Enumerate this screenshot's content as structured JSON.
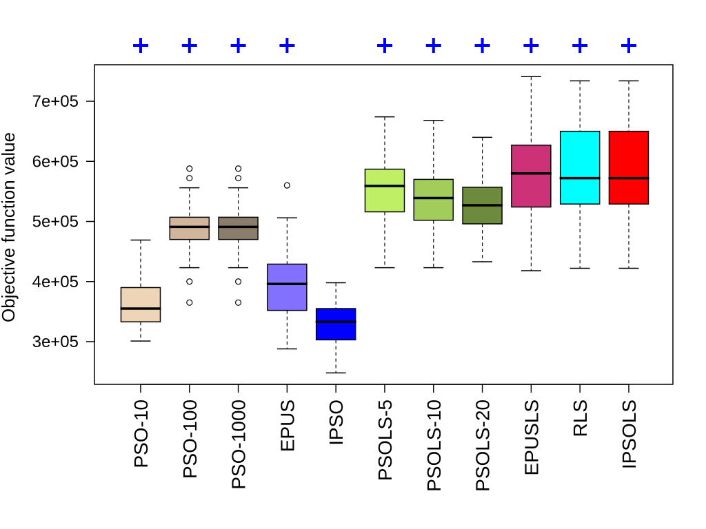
{
  "chart_data": {
    "type": "boxplot",
    "title": "",
    "xlabel": "",
    "ylabel": "Objective function value",
    "ylim": [
      230000,
      760000
    ],
    "yticks": [
      300000,
      400000,
      500000,
      600000,
      700000
    ],
    "ytick_labels": [
      "3e+05",
      "4e+05",
      "5e+05",
      "6e+05",
      "7e+05"
    ],
    "grid": false,
    "significance_marker": "+",
    "significance_color": "#0000FF",
    "categories": [
      "PSO-10",
      "PSO-100",
      "PSO-1000",
      "EPUS",
      "IPSO",
      "PSOLS-5",
      "PSOLS-10",
      "PSOLS-20",
      "EPUSLS",
      "RLS",
      "IPSOLS"
    ],
    "bold_categories": [
      "IPSO",
      "IPSOLS"
    ],
    "boxes": [
      {
        "name": "PSO-10",
        "color": "#EED5B7",
        "whisker_low": 301000,
        "q1": 333000,
        "median": 355000,
        "q3": 390000,
        "whisker_high": 469000,
        "outliers": [],
        "significant": true
      },
      {
        "name": "PSO-100",
        "color": "#D2B69C",
        "whisker_low": 423000,
        "q1": 470000,
        "median": 491000,
        "q3": 507000,
        "whisker_high": 556000,
        "outliers": [
          588000,
          572000,
          400000,
          365000
        ],
        "significant": true
      },
      {
        "name": "PSO-1000",
        "color": "#8B7D6B",
        "whisker_low": 423000,
        "q1": 470000,
        "median": 491000,
        "q3": 507000,
        "whisker_high": 556000,
        "outliers": [
          588000,
          572000,
          400000,
          365000
        ],
        "significant": true
      },
      {
        "name": "EPUS",
        "color": "#8470FF",
        "whisker_low": 288000,
        "q1": 352000,
        "median": 396000,
        "q3": 429000,
        "whisker_high": 506000,
        "outliers": [
          560000
        ],
        "significant": true
      },
      {
        "name": "IPSO",
        "color": "#0000FF",
        "whisker_low": 248000,
        "q1": 303000,
        "median": 333000,
        "q3": 355000,
        "whisker_high": 398000,
        "outliers": [],
        "significant": false
      },
      {
        "name": "PSOLS-5",
        "color": "#BFEF65",
        "whisker_low": 423000,
        "q1": 516000,
        "median": 559000,
        "q3": 587000,
        "whisker_high": 674000,
        "outliers": [],
        "significant": true
      },
      {
        "name": "PSOLS-10",
        "color": "#A2CD5A",
        "whisker_low": 423000,
        "q1": 502000,
        "median": 539000,
        "q3": 570000,
        "whisker_high": 668000,
        "outliers": [],
        "significant": true
      },
      {
        "name": "PSOLS-20",
        "color": "#6E8B3D",
        "whisker_low": 433000,
        "q1": 496000,
        "median": 527000,
        "q3": 557000,
        "whisker_high": 640000,
        "outliers": [],
        "significant": true
      },
      {
        "name": "EPUSLS",
        "color": "#CD3278",
        "whisker_low": 418000,
        "q1": 524000,
        "median": 580000,
        "q3": 627000,
        "whisker_high": 741000,
        "outliers": [],
        "significant": true
      },
      {
        "name": "RLS",
        "color": "#00FFFF",
        "whisker_low": 422000,
        "q1": 529000,
        "median": 572000,
        "q3": 650000,
        "whisker_high": 734000,
        "outliers": [],
        "significant": true
      },
      {
        "name": "IPSOLS",
        "color": "#FF0000",
        "whisker_low": 422000,
        "q1": 529000,
        "median": 572000,
        "q3": 650000,
        "whisker_high": 734000,
        "outliers": [],
        "significant": true
      }
    ]
  }
}
